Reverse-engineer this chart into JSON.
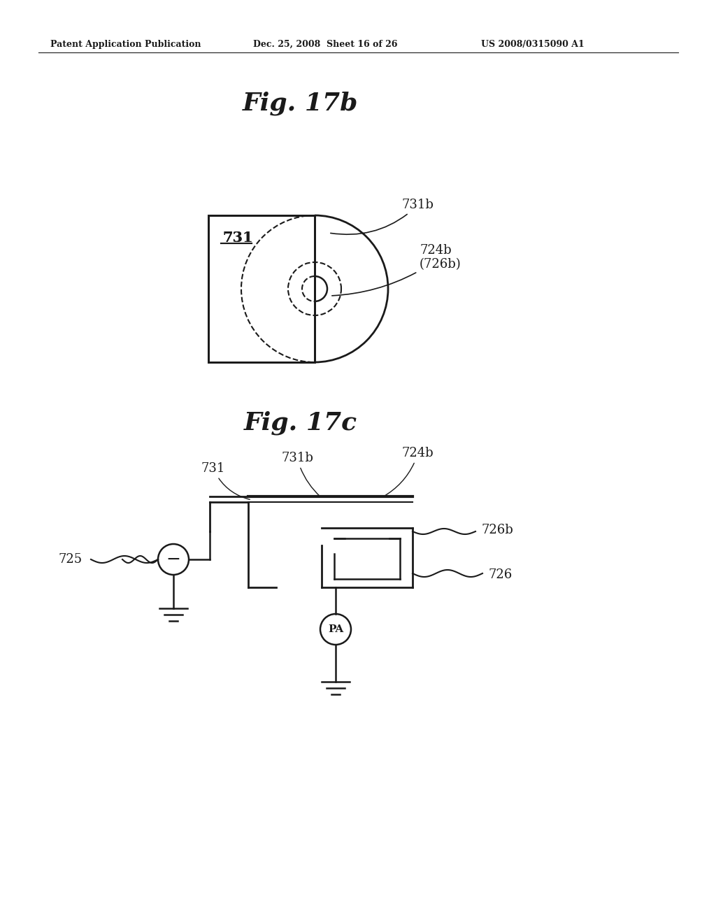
{
  "bg_color": "#ffffff",
  "header_left": "Patent Application Publication",
  "header_mid": "Dec. 25, 2008  Sheet 16 of 26",
  "header_right": "US 2008/0315090 A1",
  "fig17b_title": "Fig. 17b",
  "fig17c_title": "Fig. 17c",
  "lc": "#1a1a1a",
  "tc": "#1a1a1a",
  "lw": 2.0,
  "lt": 1.5
}
